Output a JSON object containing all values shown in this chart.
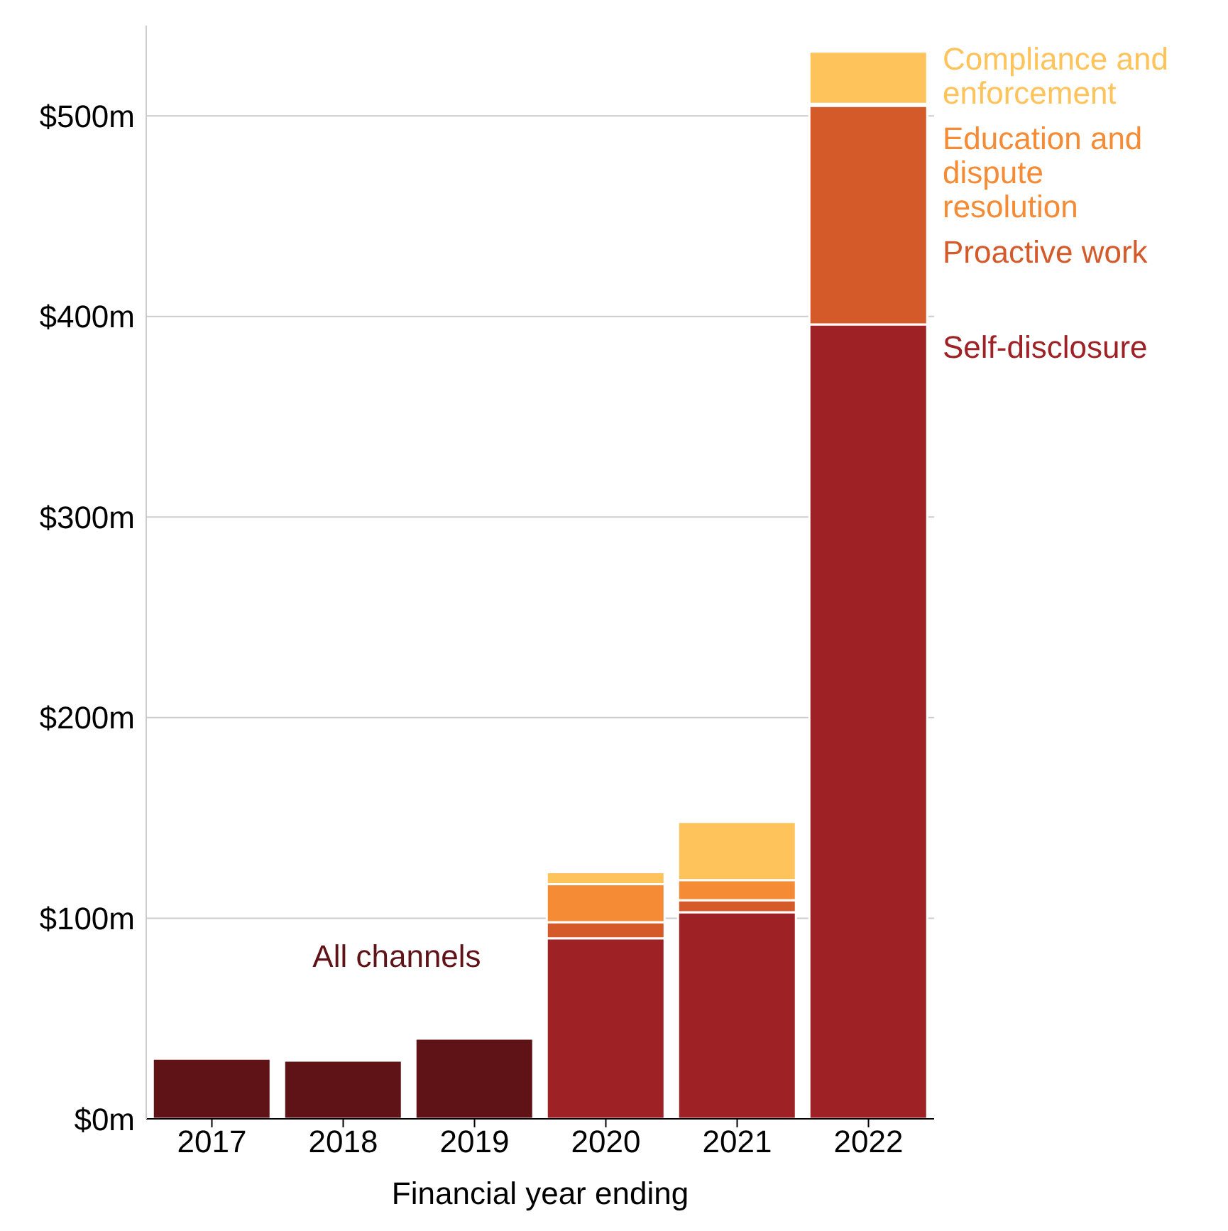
{
  "chart_data": {
    "type": "bar",
    "stacked": true,
    "xlabel": "Financial year ending",
    "categories": [
      "2017",
      "2018",
      "2019",
      "2020",
      "2021",
      "2022"
    ],
    "series": [
      {
        "name": "All channels",
        "color": "#5f1317",
        "values": [
          30,
          29,
          40,
          null,
          null,
          null
        ]
      },
      {
        "name": "Self-disclosure",
        "color": "#9e2126",
        "values": [
          null,
          null,
          null,
          90,
          103,
          396
        ]
      },
      {
        "name": "Proactive work",
        "color": "#d45a2a",
        "values": [
          null,
          null,
          null,
          8,
          6,
          109
        ]
      },
      {
        "name": "Education and dispute resolution",
        "color": "#f58b35",
        "values": [
          null,
          null,
          null,
          19,
          10,
          1
        ]
      },
      {
        "name": "Compliance and enforcement",
        "color": "#fec35a",
        "values": [
          null,
          null,
          null,
          6,
          29,
          26
        ]
      }
    ],
    "ylim": [
      0,
      545
    ],
    "yticks": [
      {
        "value": 0,
        "label": "$0m"
      },
      {
        "value": 100,
        "label": "$100m"
      },
      {
        "value": 200,
        "label": "$200m"
      },
      {
        "value": 300,
        "label": "$300m"
      },
      {
        "value": 400,
        "label": "$400m"
      },
      {
        "value": 500,
        "label": "$500m"
      }
    ],
    "grid": "y",
    "legend": false
  }
}
